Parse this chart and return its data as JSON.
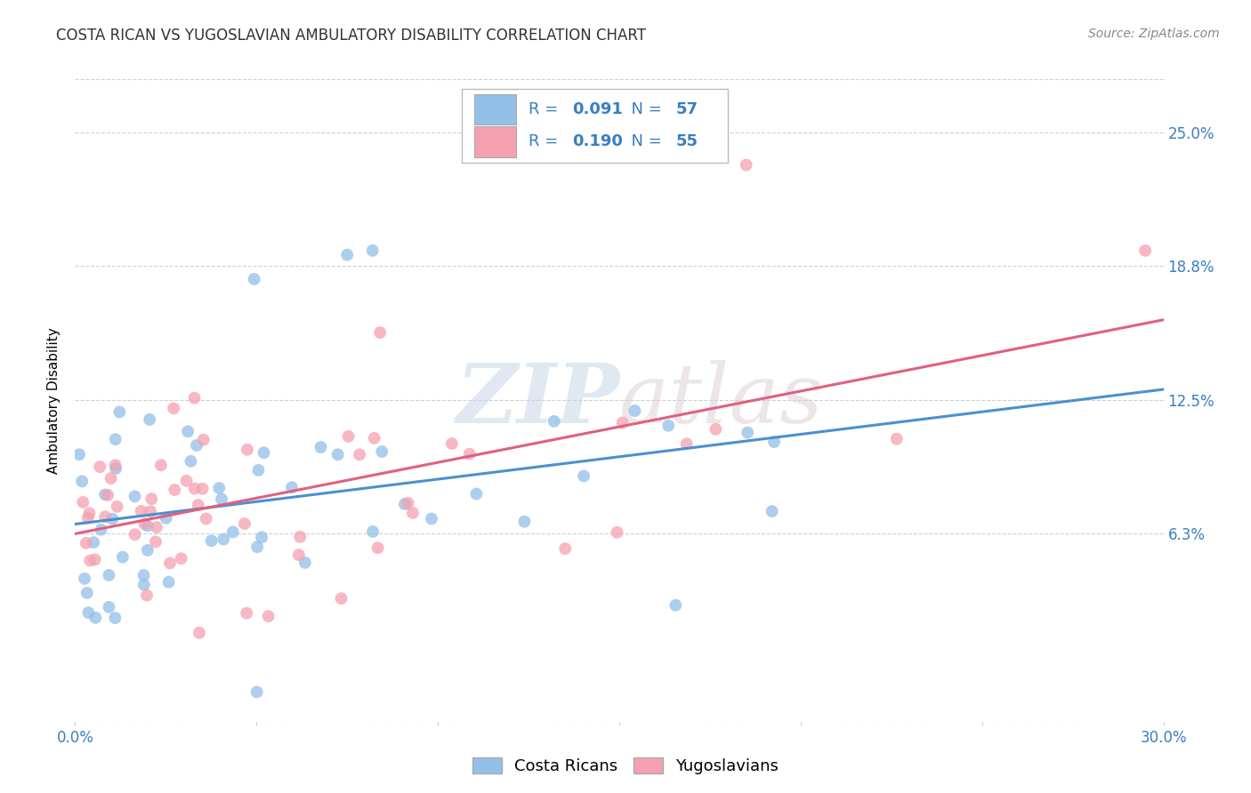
{
  "title": "COSTA RICAN VS YUGOSLAVIAN AMBULATORY DISABILITY CORRELATION CHART",
  "source": "Source: ZipAtlas.com",
  "ylabel": "Ambulatory Disability",
  "xlim": [
    0.0,
    0.3
  ],
  "ylim": [
    -0.025,
    0.275
  ],
  "ytick_labels": [
    "6.3%",
    "12.5%",
    "18.8%",
    "25.0%"
  ],
  "ytick_values": [
    0.063,
    0.125,
    0.188,
    0.25
  ],
  "grid_color": "#d0d0d0",
  "background_color": "#ffffff",
  "blue_color": "#92c0e8",
  "pink_color": "#f5a0b0",
  "blue_line_color": "#4a90d0",
  "pink_line_color": "#e06080",
  "legend_R_blue": "0.091",
  "legend_N_blue": "57",
  "legend_R_pink": "0.190",
  "legend_N_pink": "55",
  "legend_label_blue": "Costa Ricans",
  "legend_label_pink": "Yugoslavians",
  "watermark_zip": "ZIP",
  "watermark_atlas": "atlas",
  "cr_seed": 42,
  "yu_seed": 77
}
